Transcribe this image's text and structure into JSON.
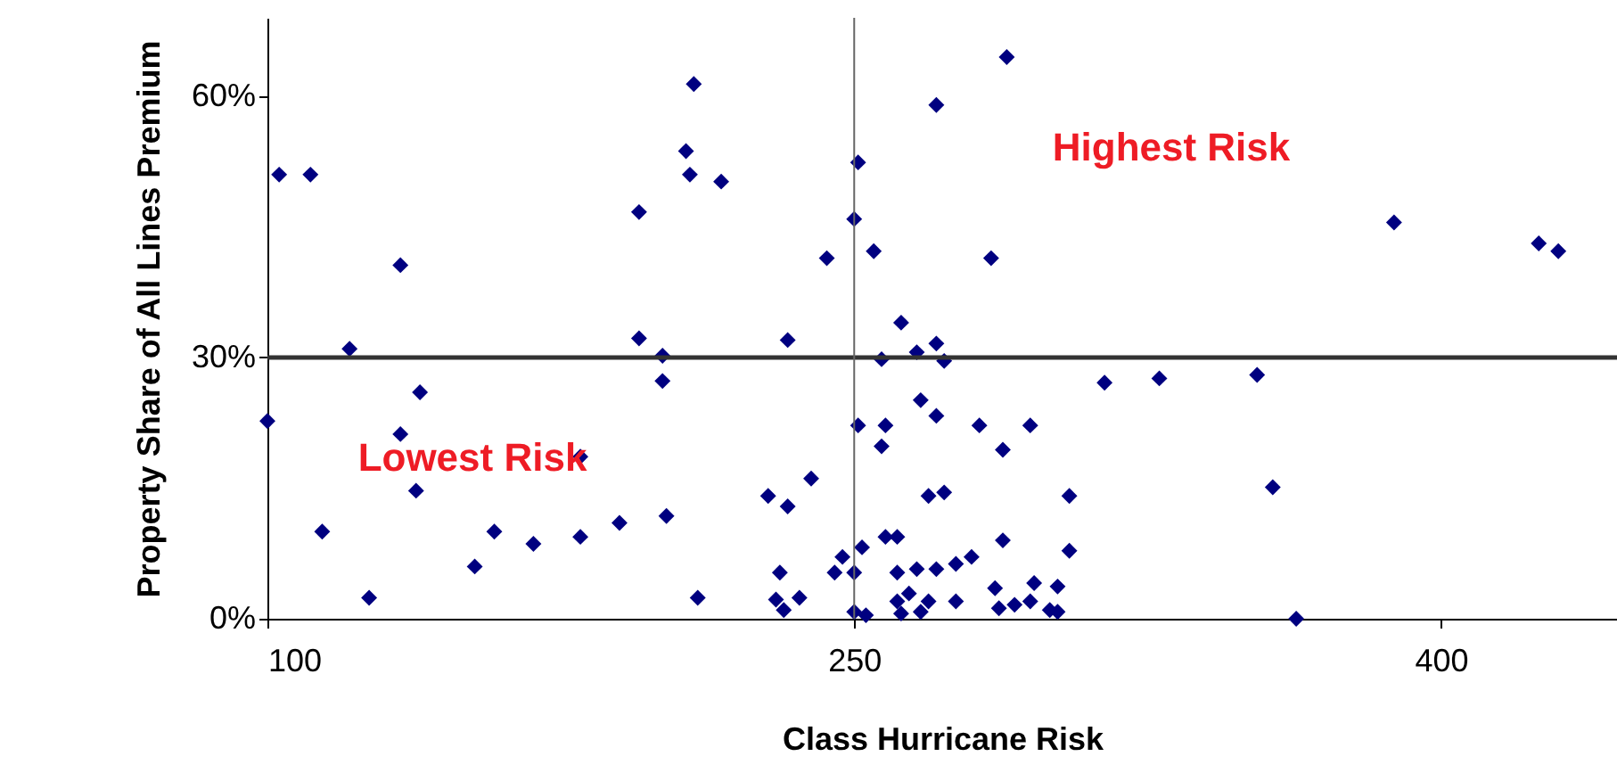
{
  "chart_data": {
    "type": "scatter",
    "xlabel": "Class Hurricane Risk",
    "ylabel": "Property Share of All Lines Premium",
    "x": [
      100,
      103,
      111,
      114,
      121,
      126,
      134,
      134,
      139,
      138,
      153,
      158,
      168,
      180,
      180,
      190,
      195,
      195,
      201,
      201,
      202,
      207,
      208,
      209,
      210,
      216,
      251,
      250,
      243,
      255,
      285,
      271,
      289,
      233,
      262,
      271,
      266,
      257,
      273,
      314,
      267,
      271,
      251,
      258,
      282,
      295,
      257,
      288,
      239,
      228,
      233,
      269,
      273,
      305,
      258,
      261,
      288,
      305,
      252,
      247,
      245,
      250,
      231,
      261,
      266,
      271,
      276,
      280,
      230,
      236,
      232,
      250,
      253,
      261,
      264,
      269,
      262,
      267,
      276,
      286,
      287,
      291,
      296,
      295,
      302,
      300,
      302,
      388,
      425,
      430,
      328,
      353,
      357,
      363
    ],
    "series": [
      {
        "color": "#000080",
        "values": [
          22.7,
          51,
          51,
          10,
          31,
          2.4,
          40.6,
          21.2,
          26,
          14.7,
          6,
          10,
          8.6,
          9.4,
          18.6,
          11,
          46.7,
          32.2,
          30.2,
          27.3,
          11.8,
          53.7,
          51,
          61.4,
          2.4,
          50.2,
          52.4,
          45.9,
          41.4,
          42.2,
          41.4,
          59,
          64.5,
          32,
          34,
          31.6,
          30.6,
          29.8,
          29.6,
          27.1,
          25.1,
          23.3,
          22.2,
          22.2,
          22.2,
          22.2,
          19.8,
          19.4,
          16.1,
          14.1,
          12.9,
          14.1,
          14.5,
          14.1,
          9.4,
          9.4,
          9,
          7.8,
          8.2,
          7.1,
          5.3,
          5.3,
          5.3,
          5.3,
          5.7,
          5.7,
          6.3,
          7.1,
          2.2,
          2.4,
          1,
          0.8,
          0.4,
          2,
          2.9,
          2,
          0.6,
          0.8,
          2,
          3.5,
          1.2,
          1.6,
          4.1,
          2,
          3.7,
          1,
          0.8,
          45.5,
          43.1,
          42.2,
          27.6,
          28,
          15.1,
          0
        ]
      }
    ],
    "xlim": [
      100,
      445
    ],
    "xticks": [
      100,
      250,
      400
    ],
    "ylim": [
      0,
      69
    ],
    "yticks": [
      {
        "value": 0,
        "label": "0%"
      },
      {
        "value": 30,
        "label": "30%"
      },
      {
        "value": 60,
        "label": "60%"
      }
    ],
    "marker": "diamond",
    "grid": false,
    "ref_lines": [
      {
        "axis": "y",
        "value": 30,
        "color": "#333333"
      },
      {
        "axis": "x",
        "value": 250,
        "color": "#666666"
      }
    ],
    "annotations": [
      "Highest Risk",
      "Lowest Risk"
    ]
  }
}
